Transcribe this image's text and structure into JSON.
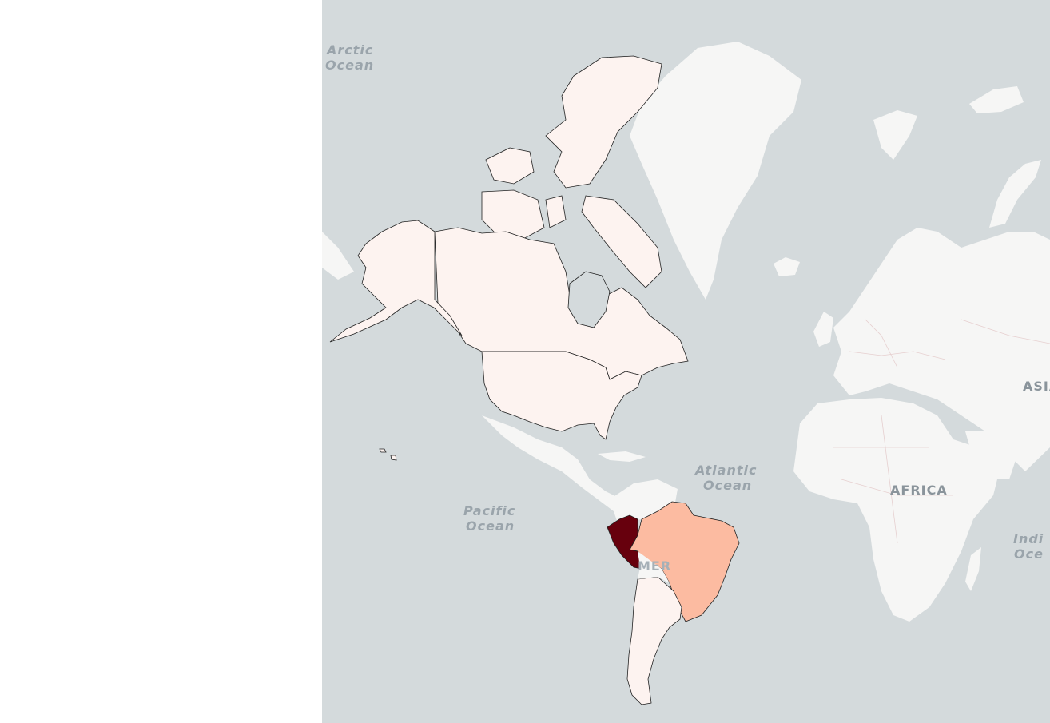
{
  "map": {
    "ocean_labels": {
      "arctic": [
        "Arctic",
        "Ocean"
      ],
      "atlantic": [
        "Atlantic",
        "Ocean"
      ],
      "pacific": [
        "Pacific",
        "Ocean"
      ],
      "indian": [
        "Indi",
        "Oce"
      ]
    },
    "continent_labels": {
      "africa": "AFRICA",
      "asia": "ASIA",
      "america": "MER"
    },
    "colors": {
      "ocean": "#d4dadc",
      "land_base": "#f6f6f5",
      "choropleth_low": "#fdf3f0",
      "brazil": "#fcbba1",
      "peru": "#67000d",
      "border": "#222222"
    }
  }
}
